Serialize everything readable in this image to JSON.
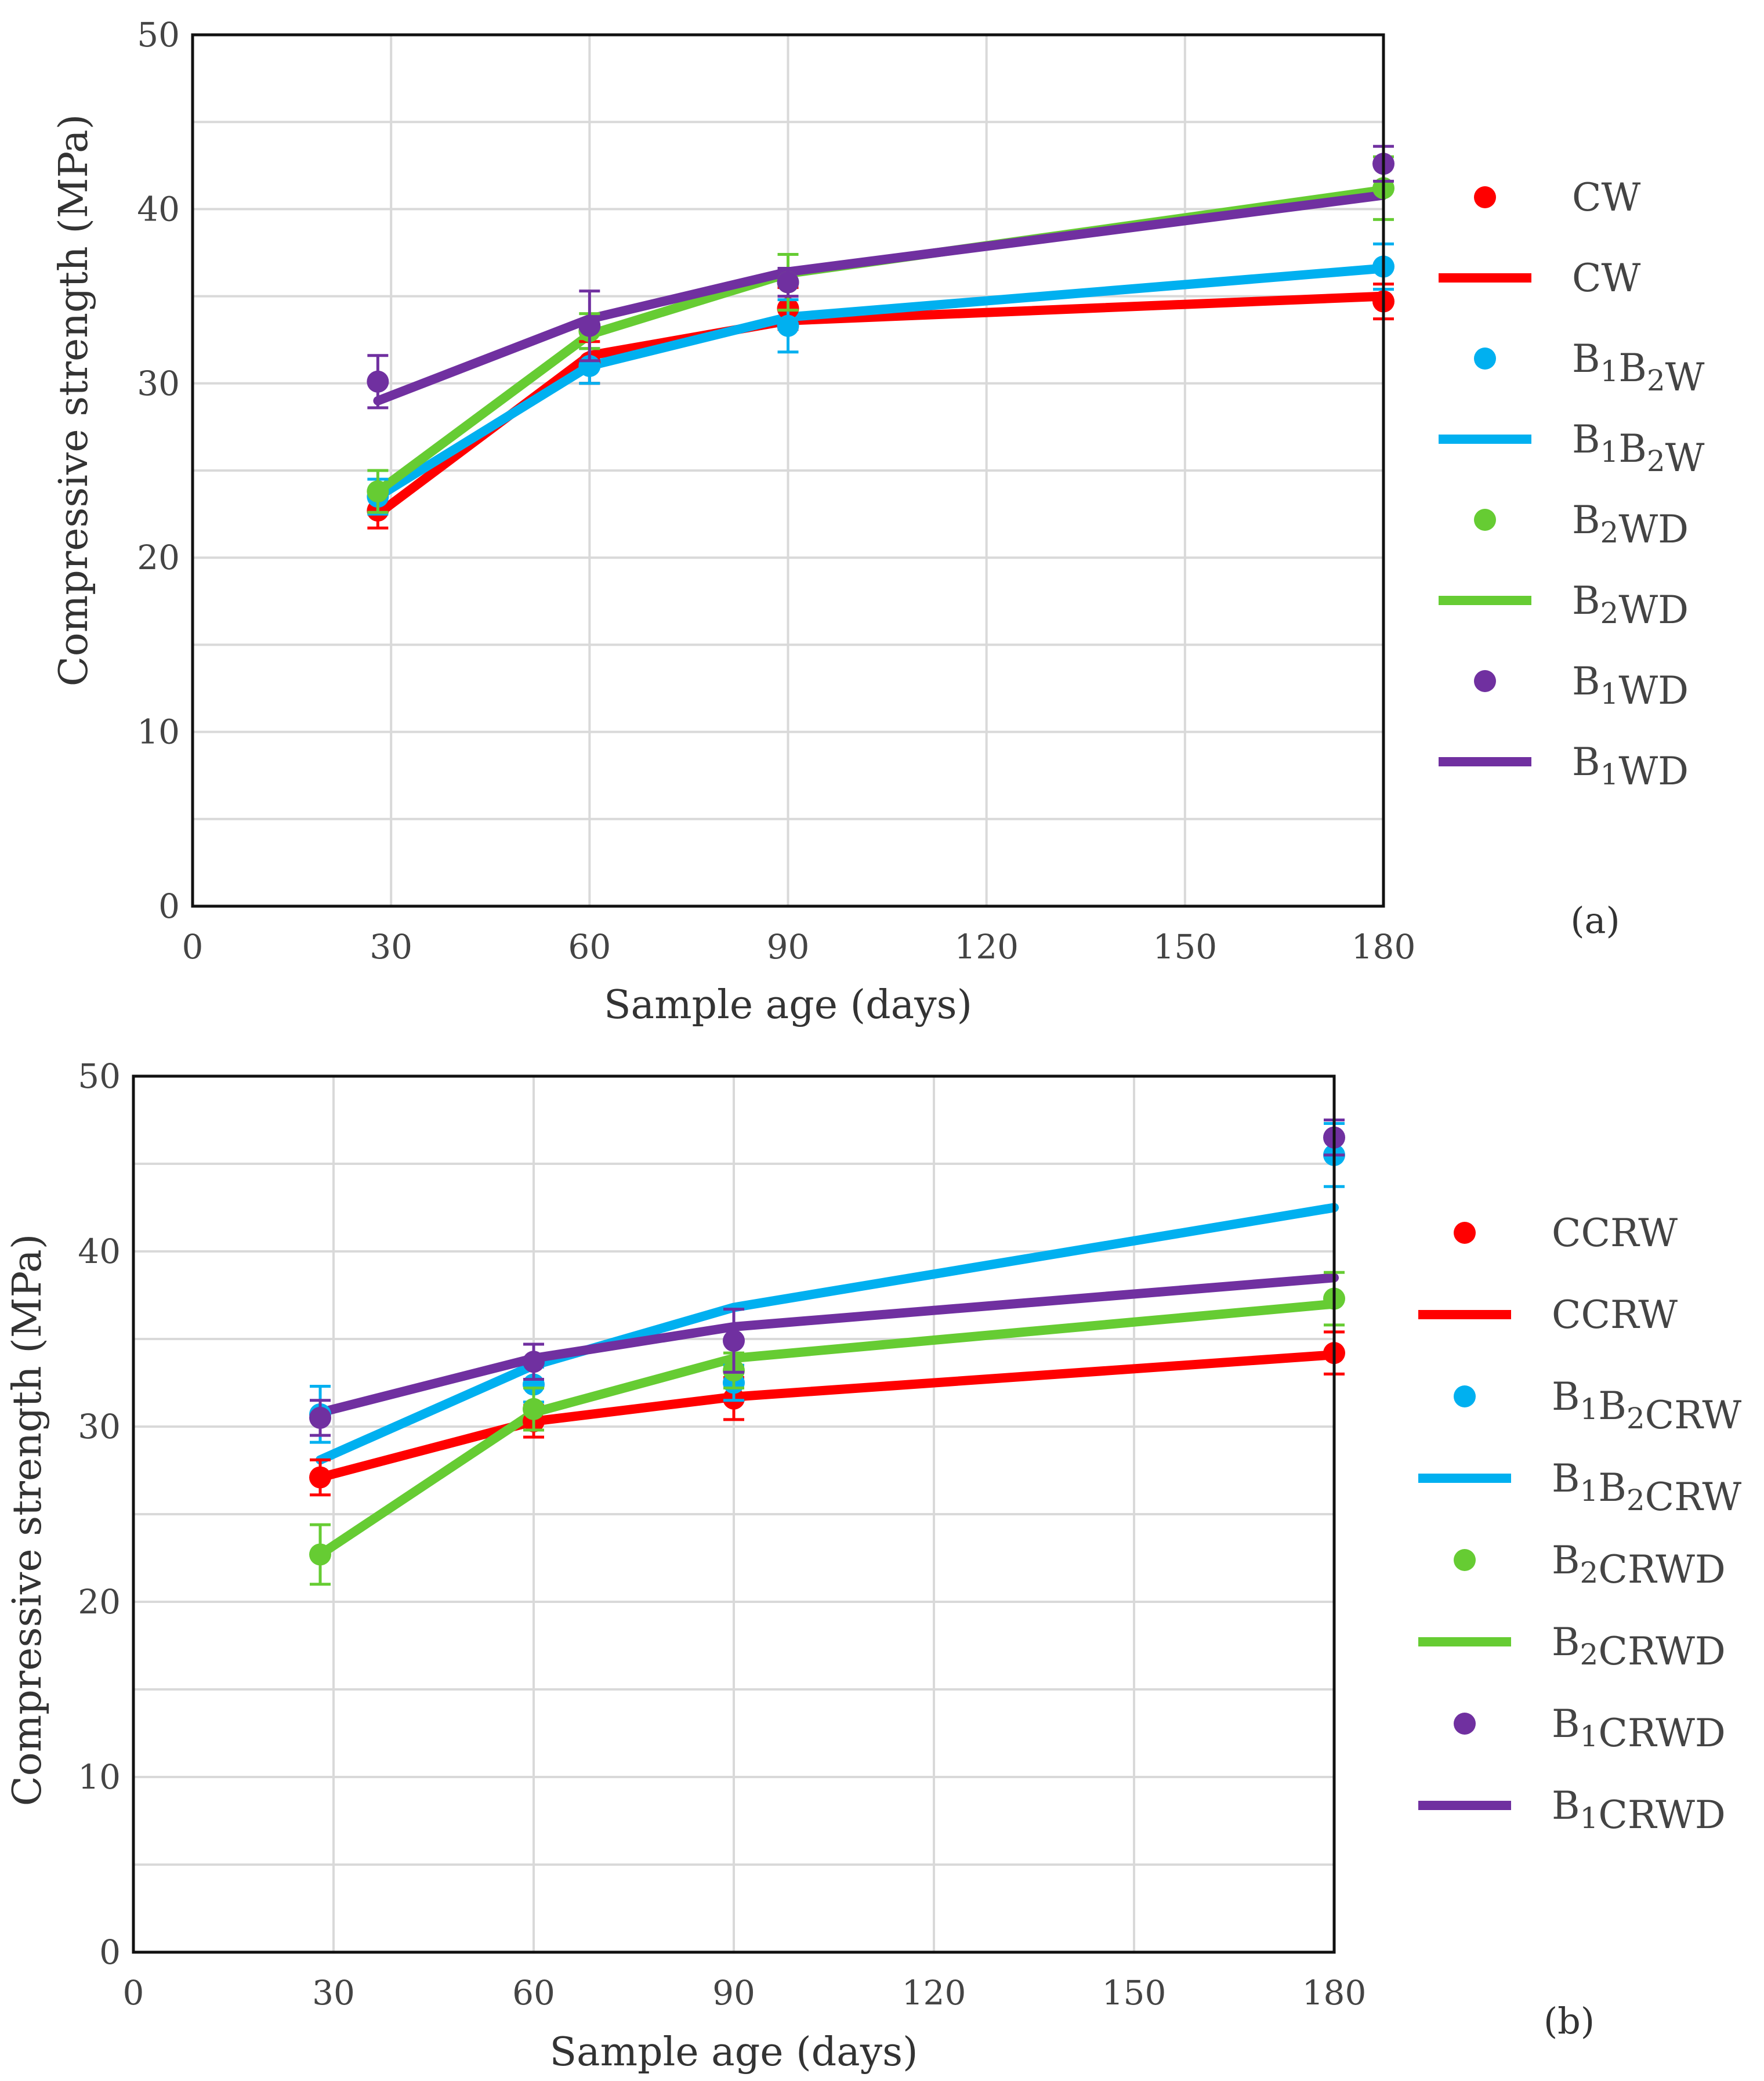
{
  "chart_data": [
    {
      "type": "line",
      "panel_label": "(a)",
      "title": "",
      "xlabel": "Sample age (days)",
      "ylabel": "Compressive strength (MPa)",
      "xlim": [
        0,
        180
      ],
      "ylim": [
        0,
        50
      ],
      "xticks": [
        "0",
        "30",
        "60",
        "90",
        "120",
        "150",
        "180"
      ],
      "yticks": [
        "0",
        "10",
        "20",
        "30",
        "40",
        "50"
      ],
      "grid": true,
      "legend_position": "right",
      "series": [
        {
          "name": "CW",
          "base": "CW",
          "sub": [],
          "color": "#ff0000",
          "points": [
            {
              "x": 28,
              "y": 22.7,
              "err": 1.0
            },
            {
              "x": 60,
              "y": 31.2,
              "err": 1.2
            },
            {
              "x": 90,
              "y": 34.3,
              "err": 1.2
            },
            {
              "x": 180,
              "y": 34.7,
              "err": 1.0
            }
          ],
          "line": [
            {
              "x": 28,
              "y": 22.5
            },
            {
              "x": 60,
              "y": 31.6
            },
            {
              "x": 90,
              "y": 33.6
            },
            {
              "x": 180,
              "y": 35.0
            }
          ]
        },
        {
          "name": "B1B2W",
          "base": "B1B2W",
          "sub": [],
          "color": "#00b0f0",
          "points": [
            {
              "x": 28,
              "y": 23.5,
              "err": 1.0
            },
            {
              "x": 60,
              "y": 31.0,
              "err": 1.0
            },
            {
              "x": 90,
              "y": 33.3,
              "err": 1.5
            },
            {
              "x": 180,
              "y": 36.7,
              "err": 1.3
            }
          ],
          "line": [
            {
              "x": 28,
              "y": 23.5
            },
            {
              "x": 60,
              "y": 31.0
            },
            {
              "x": 90,
              "y": 33.8
            },
            {
              "x": 180,
              "y": 36.6
            }
          ]
        },
        {
          "name": "B2WD",
          "base": "B2WD",
          "sub": [],
          "color": "#66cc33",
          "points": [
            {
              "x": 28,
              "y": 23.8,
              "err": 1.2
            },
            {
              "x": 60,
              "y": 33.0,
              "err": 1.0
            },
            {
              "x": 90,
              "y": 35.8,
              "err": 1.6
            },
            {
              "x": 180,
              "y": 41.2,
              "err": 1.8
            }
          ],
          "line": [
            {
              "x": 28,
              "y": 23.8
            },
            {
              "x": 60,
              "y": 32.8
            },
            {
              "x": 90,
              "y": 36.3
            },
            {
              "x": 180,
              "y": 41.1
            }
          ]
        },
        {
          "name": "B1WD",
          "base": "B1WD",
          "sub": [],
          "color": "#7030a0",
          "points": [
            {
              "x": 28,
              "y": 30.1,
              "err": 1.5
            },
            {
              "x": 60,
              "y": 33.3,
              "err": 2.0
            },
            {
              "x": 90,
              "y": 35.8,
              "err": 0.8
            },
            {
              "x": 180,
              "y": 42.6,
              "err": 1.0
            }
          ],
          "line": [
            {
              "x": 28,
              "y": 29.0
            },
            {
              "x": 60,
              "y": 33.7
            },
            {
              "x": 90,
              "y": 36.4
            },
            {
              "x": 180,
              "y": 40.8
            }
          ]
        }
      ]
    },
    {
      "type": "line",
      "panel_label": "(b)",
      "title": "",
      "xlabel": "Sample age (days)",
      "ylabel": "Compressive strength (MPa)",
      "xlim": [
        0,
        180
      ],
      "ylim": [
        0,
        50
      ],
      "xticks": [
        "0",
        "30",
        "60",
        "90",
        "120",
        "150",
        "180"
      ],
      "yticks": [
        "0",
        "10",
        "20",
        "30",
        "40",
        "50"
      ],
      "grid": true,
      "legend_position": "right",
      "series": [
        {
          "name": "CCRW",
          "base": "CCRW",
          "sub": [],
          "color": "#ff0000",
          "points": [
            {
              "x": 28,
              "y": 27.1,
              "err": 1.0
            },
            {
              "x": 60,
              "y": 30.3,
              "err": 0.9
            },
            {
              "x": 90,
              "y": 31.6,
              "err": 1.2
            },
            {
              "x": 180,
              "y": 34.2,
              "err": 1.2
            }
          ],
          "line": [
            {
              "x": 28,
              "y": 27.1
            },
            {
              "x": 60,
              "y": 30.3
            },
            {
              "x": 90,
              "y": 31.7
            },
            {
              "x": 180,
              "y": 34.1
            }
          ]
        },
        {
          "name": "B1B2CRW",
          "base": "B1B2CRW",
          "sub": [],
          "color": "#00b0f0",
          "points": [
            {
              "x": 28,
              "y": 30.7,
              "err": 1.6
            },
            {
              "x": 60,
              "y": 32.4,
              "err": 1.0
            },
            {
              "x": 90,
              "y": 32.5,
              "err": 1.0
            },
            {
              "x": 180,
              "y": 45.5,
              "err": 1.8
            }
          ],
          "line": [
            {
              "x": 28,
              "y": 28.1
            },
            {
              "x": 60,
              "y": 33.5
            },
            {
              "x": 90,
              "y": 36.8
            },
            {
              "x": 180,
              "y": 42.5
            }
          ]
        },
        {
          "name": "B2CRWD",
          "base": "B2CRWD",
          "sub": [],
          "color": "#66cc33",
          "points": [
            {
              "x": 28,
              "y": 22.7,
              "err": 1.7
            },
            {
              "x": 60,
              "y": 31.0,
              "err": 1.2
            },
            {
              "x": 90,
              "y": 33.2,
              "err": 1.0
            },
            {
              "x": 180,
              "y": 37.3,
              "err": 1.5
            }
          ],
          "line": [
            {
              "x": 28,
              "y": 22.7
            },
            {
              "x": 60,
              "y": 30.8
            },
            {
              "x": 90,
              "y": 33.9
            },
            {
              "x": 180,
              "y": 37.0
            }
          ]
        },
        {
          "name": "B1CRWD",
          "base": "B1CRWD",
          "sub": [],
          "color": "#7030a0",
          "points": [
            {
              "x": 28,
              "y": 30.5,
              "err": 1.0
            },
            {
              "x": 60,
              "y": 33.7,
              "err": 1.0
            },
            {
              "x": 90,
              "y": 34.9,
              "err": 1.8
            },
            {
              "x": 180,
              "y": 46.5,
              "err": 1.0
            }
          ],
          "line": [
            {
              "x": 28,
              "y": 30.8
            },
            {
              "x": 60,
              "y": 33.9
            },
            {
              "x": 90,
              "y": 35.7
            },
            {
              "x": 180,
              "y": 38.5
            }
          ]
        }
      ]
    }
  ]
}
